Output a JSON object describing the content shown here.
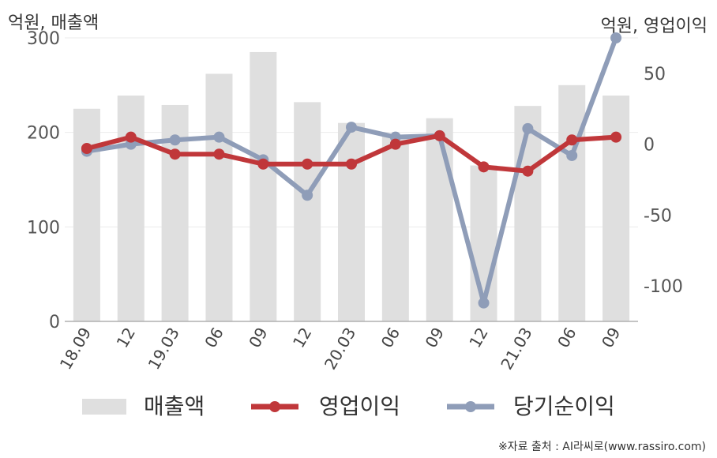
{
  "chart_data": {
    "type": "bar",
    "left_unit": "억원, 매출액",
    "right_unit": "억원, 영업이익",
    "categories": [
      "18.09",
      "12",
      "19.03",
      "06",
      "09",
      "12",
      "20.03",
      "06",
      "09",
      "12",
      "21.03",
      "06",
      "09"
    ],
    "left_axis": {
      "min": 0,
      "max": 300,
      "ticks": [
        0,
        100,
        200,
        300
      ],
      "tick_labels": [
        "0",
        "100",
        "200",
        "300"
      ]
    },
    "right_axis": {
      "min": -125,
      "max": 75,
      "ticks": [
        50,
        0,
        -50,
        -100
      ],
      "tick_labels": [
        "50",
        "0",
        "-50",
        "-100"
      ]
    },
    "series": [
      {
        "name": "매출액",
        "kind": "bar",
        "axis": "left",
        "color": "#dfdfdf",
        "values": [
          225,
          239,
          229,
          262,
          285,
          232,
          210,
          196,
          215,
          165,
          228,
          250,
          239
        ]
      },
      {
        "name": "영업이익",
        "kind": "line",
        "axis": "right",
        "color": "#c0373a",
        "values": [
          -3,
          5,
          -7,
          -7,
          -14,
          -14,
          -14,
          0,
          6,
          -16,
          -19,
          3,
          5
        ]
      },
      {
        "name": "당기순이익",
        "kind": "line",
        "axis": "right",
        "color": "#8f9db8",
        "values": [
          -5,
          0,
          3,
          5,
          -11,
          -36,
          12,
          5,
          6,
          -112,
          11,
          -8,
          75
        ]
      }
    ],
    "grid": true,
    "legend_position": "bottom"
  },
  "source": "※자료 출처 : AI라씨로(www.rassiro.com)"
}
